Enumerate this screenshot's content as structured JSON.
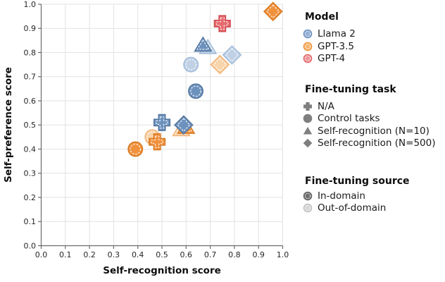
{
  "chart_data": {
    "type": "scatter",
    "title": "",
    "xlabel": "Self-recognition score",
    "ylabel": "Self-preference score",
    "xlim": [
      0.0,
      1.0
    ],
    "ylim": [
      0.0,
      1.0
    ],
    "grid": true,
    "xtick_labels": [
      "0.0",
      "0.1",
      "0.2",
      "0.3",
      "0.4",
      "0.5",
      "0.6",
      "0.7",
      "0.8",
      "0.9",
      "1.0"
    ],
    "ytick_labels": [
      "0.0",
      "0.1",
      "0.2",
      "0.3",
      "0.4",
      "0.5",
      "0.6",
      "0.7",
      "0.8",
      "0.9",
      "1.0"
    ],
    "shape_by_task": {
      "N/A": "cross",
      "Control tasks": "circle",
      "Self-recognition (N=10)": "triangle",
      "Self-recognition (N=500)": "diamond"
    },
    "points": [
      {
        "model": "GPT-3.5",
        "task": "Control tasks",
        "source": "Out-of-domain",
        "x": 0.46,
        "y": 0.45
      },
      {
        "model": "GPT-3.5",
        "task": "N/A",
        "source": null,
        "x": 0.48,
        "y": 0.43
      },
      {
        "model": "Llama 2",
        "task": "N/A",
        "source": null,
        "x": 0.5,
        "y": 0.51
      },
      {
        "model": "GPT-3.5",
        "task": "Self-recognition (N=10)",
        "source": "Out-of-domain",
        "x": 0.58,
        "y": 0.48
      },
      {
        "model": "GPT-3.5",
        "task": "Self-recognition (N=10)",
        "source": "In-domain",
        "x": 0.6,
        "y": 0.49
      },
      {
        "model": "Llama 2",
        "task": "Self-recognition (N=500)",
        "source": "In-domain",
        "x": 0.59,
        "y": 0.5
      },
      {
        "model": "GPT-3.5",
        "task": "Control tasks",
        "source": "In-domain",
        "x": 0.39,
        "y": 0.4
      },
      {
        "model": "Llama 2",
        "task": "Self-recognition (N=10)",
        "source": "Out-of-domain",
        "x": 0.69,
        "y": 0.82
      },
      {
        "model": "Llama 2",
        "task": "Self-recognition (N=10)",
        "source": "In-domain",
        "x": 0.67,
        "y": 0.83
      },
      {
        "model": "Llama 2",
        "task": "Control tasks",
        "source": "Out-of-domain",
        "x": 0.62,
        "y": 0.75
      },
      {
        "model": "GPT-3.5",
        "task": "Self-recognition (N=500)",
        "source": "Out-of-domain",
        "x": 0.74,
        "y": 0.75
      },
      {
        "model": "Llama 2",
        "task": "Self-recognition (N=500)",
        "source": "Out-of-domain",
        "x": 0.79,
        "y": 0.79
      },
      {
        "model": "Llama 2",
        "task": "Control tasks",
        "source": "In-domain",
        "x": 0.64,
        "y": 0.64
      },
      {
        "model": "GPT-4",
        "task": "N/A",
        "source": null,
        "x": 0.75,
        "y": 0.92
      },
      {
        "model": "GPT-3.5",
        "task": "Self-recognition (N=500)",
        "source": "In-domain",
        "x": 0.96,
        "y": 0.97
      }
    ],
    "colors": {
      "Llama 2": {
        "dark": {
          "fill": "#6e92be",
          "stroke": "#54779f"
        },
        "light": {
          "fill": "#c0d1e5",
          "stroke": "#a2bddb"
        }
      },
      "GPT-3.5": {
        "dark": {
          "fill": "#f0913e",
          "stroke": "#d87a22"
        },
        "light": {
          "fill": "#f8d4aa",
          "stroke": "#f2b377"
        }
      },
      "GPT-4": {
        "dark": {
          "fill": "#e56a6e",
          "stroke": "#d04c52"
        },
        "light": {
          "fill": "#f2b6b8",
          "stroke": "#e79195"
        }
      },
      "grid": "#e2e2e2",
      "spine": "#6b6b6b",
      "tick_label": "#262626",
      "legend_task_gray": "#7f7f7f",
      "legend_source_dark": "#6f6f6f",
      "legend_source_light": "#d6d6d6",
      "legend_source_light_stroke": "#c2c2c2"
    },
    "legend_position": "right"
  },
  "legend": {
    "model": {
      "title": "Model",
      "items": [
        {
          "label": "Llama 2"
        },
        {
          "label": "GPT-3.5"
        },
        {
          "label": "GPT-4"
        }
      ],
      "swatches": {
        "Llama 2": {
          "fill": "#92aed1",
          "stroke": "#6d93c1"
        },
        "GPT-3.5": {
          "fill": "#f7b670",
          "stroke": "#ee9239"
        },
        "GPT-4": {
          "fill": "#ee9598",
          "stroke": "#e2666b"
        }
      }
    },
    "task": {
      "title": "Fine-tuning task",
      "items": [
        {
          "label": "N/A",
          "shape": "cross"
        },
        {
          "label": "Control tasks",
          "shape": "circle"
        },
        {
          "label": "Self-recognition (N=10)",
          "shape": "triangle"
        },
        {
          "label": "Self-recognition (N=500)",
          "shape": "diamond"
        }
      ]
    },
    "source": {
      "title": "Fine-tuning source",
      "items": [
        {
          "label": "In-domain",
          "shade": "dark"
        },
        {
          "label": "Out-of-domain",
          "shade": "light"
        }
      ]
    }
  }
}
